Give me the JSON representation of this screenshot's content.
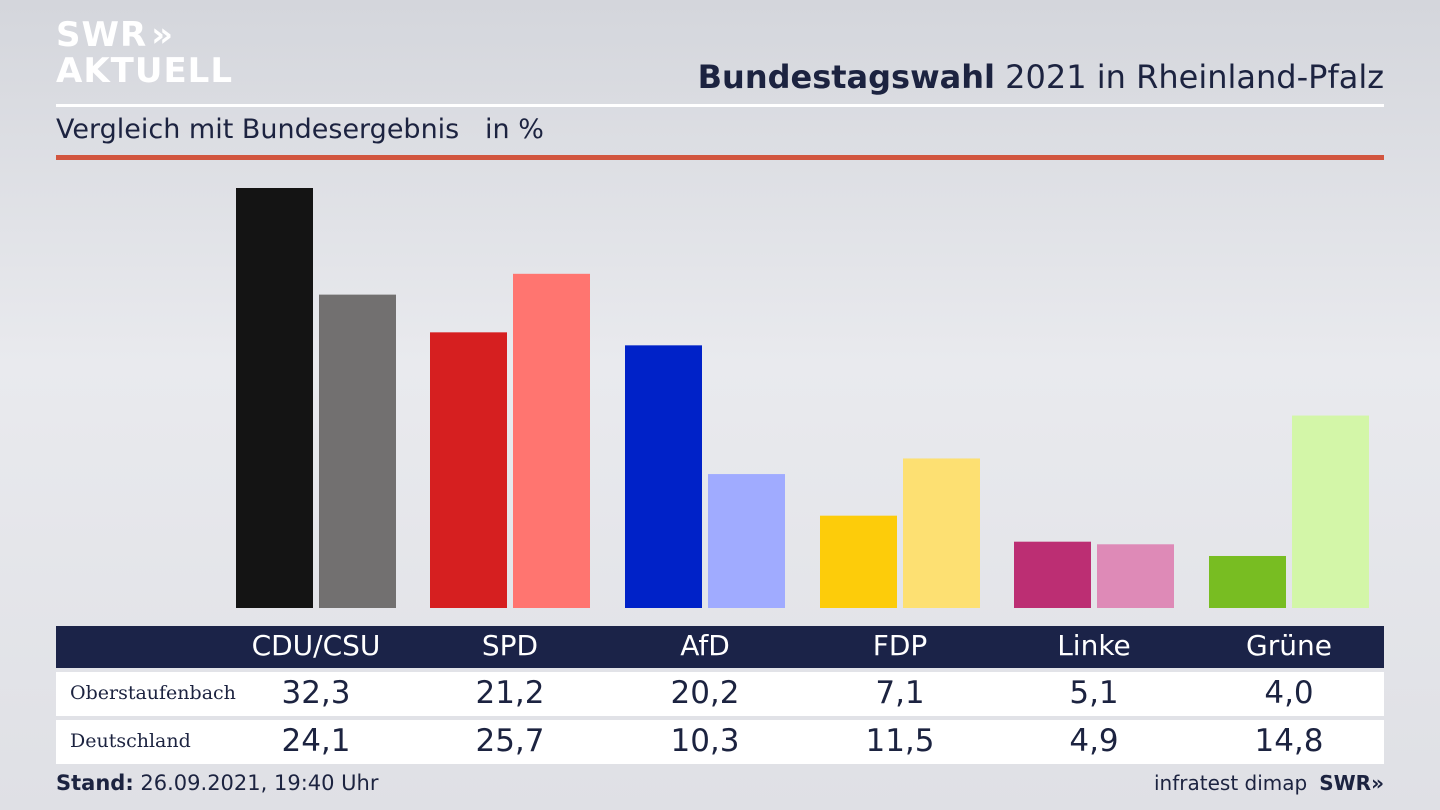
{
  "logo": {
    "line1": "SWR",
    "arrows": "»",
    "line2": "AKTUELL"
  },
  "header": {
    "title_bold": "Bundestagswahl",
    "title_rest": " 2021 in Rheinland-Pfalz"
  },
  "subtitle": "Vergleich mit Bundesergebnis   in %",
  "colors": {
    "accent_rule": "#d2553f",
    "table_header": "#1b2348",
    "text": "#1c2340"
  },
  "chart_data": {
    "type": "bar",
    "categories": [
      "CDU/CSU",
      "SPD",
      "AfD",
      "FDP",
      "Linke",
      "Grüne"
    ],
    "series": [
      {
        "name": "Oberstaufenbach",
        "values": [
          32.3,
          21.2,
          20.2,
          7.1,
          5.1,
          4.0
        ],
        "colors": [
          "#141414",
          "#d61f20",
          "#0022c8",
          "#fdcc0a",
          "#bc2e73",
          "#78bd22"
        ]
      },
      {
        "name": "Deutschland",
        "values": [
          24.1,
          25.7,
          10.3,
          11.5,
          4.9,
          14.8
        ],
        "colors": [
          "#727070",
          "#ff7570",
          "#a0abff",
          "#fde072",
          "#de8ab7",
          "#d3f6a8"
        ]
      }
    ],
    "ylim": [
      0,
      32.3
    ],
    "grid": false
  },
  "table": {
    "headers": [
      "CDU/CSU",
      "SPD",
      "AfD",
      "FDP",
      "Linke",
      "Grüne"
    ],
    "rows": [
      {
        "label": "Oberstaufenbach",
        "values": [
          "32,3",
          "21,2",
          "20,2",
          "7,1",
          "5,1",
          "4,0"
        ]
      },
      {
        "label": "Deutschland",
        "values": [
          "24,1",
          "25,7",
          "10,3",
          "11,5",
          "4,9",
          "14,8"
        ]
      }
    ]
  },
  "footer": {
    "stand_label": "Stand:",
    "stand_value": " 26.09.2021, 19:40 Uhr",
    "source": "infratest dimap",
    "brand": "SWR»"
  }
}
